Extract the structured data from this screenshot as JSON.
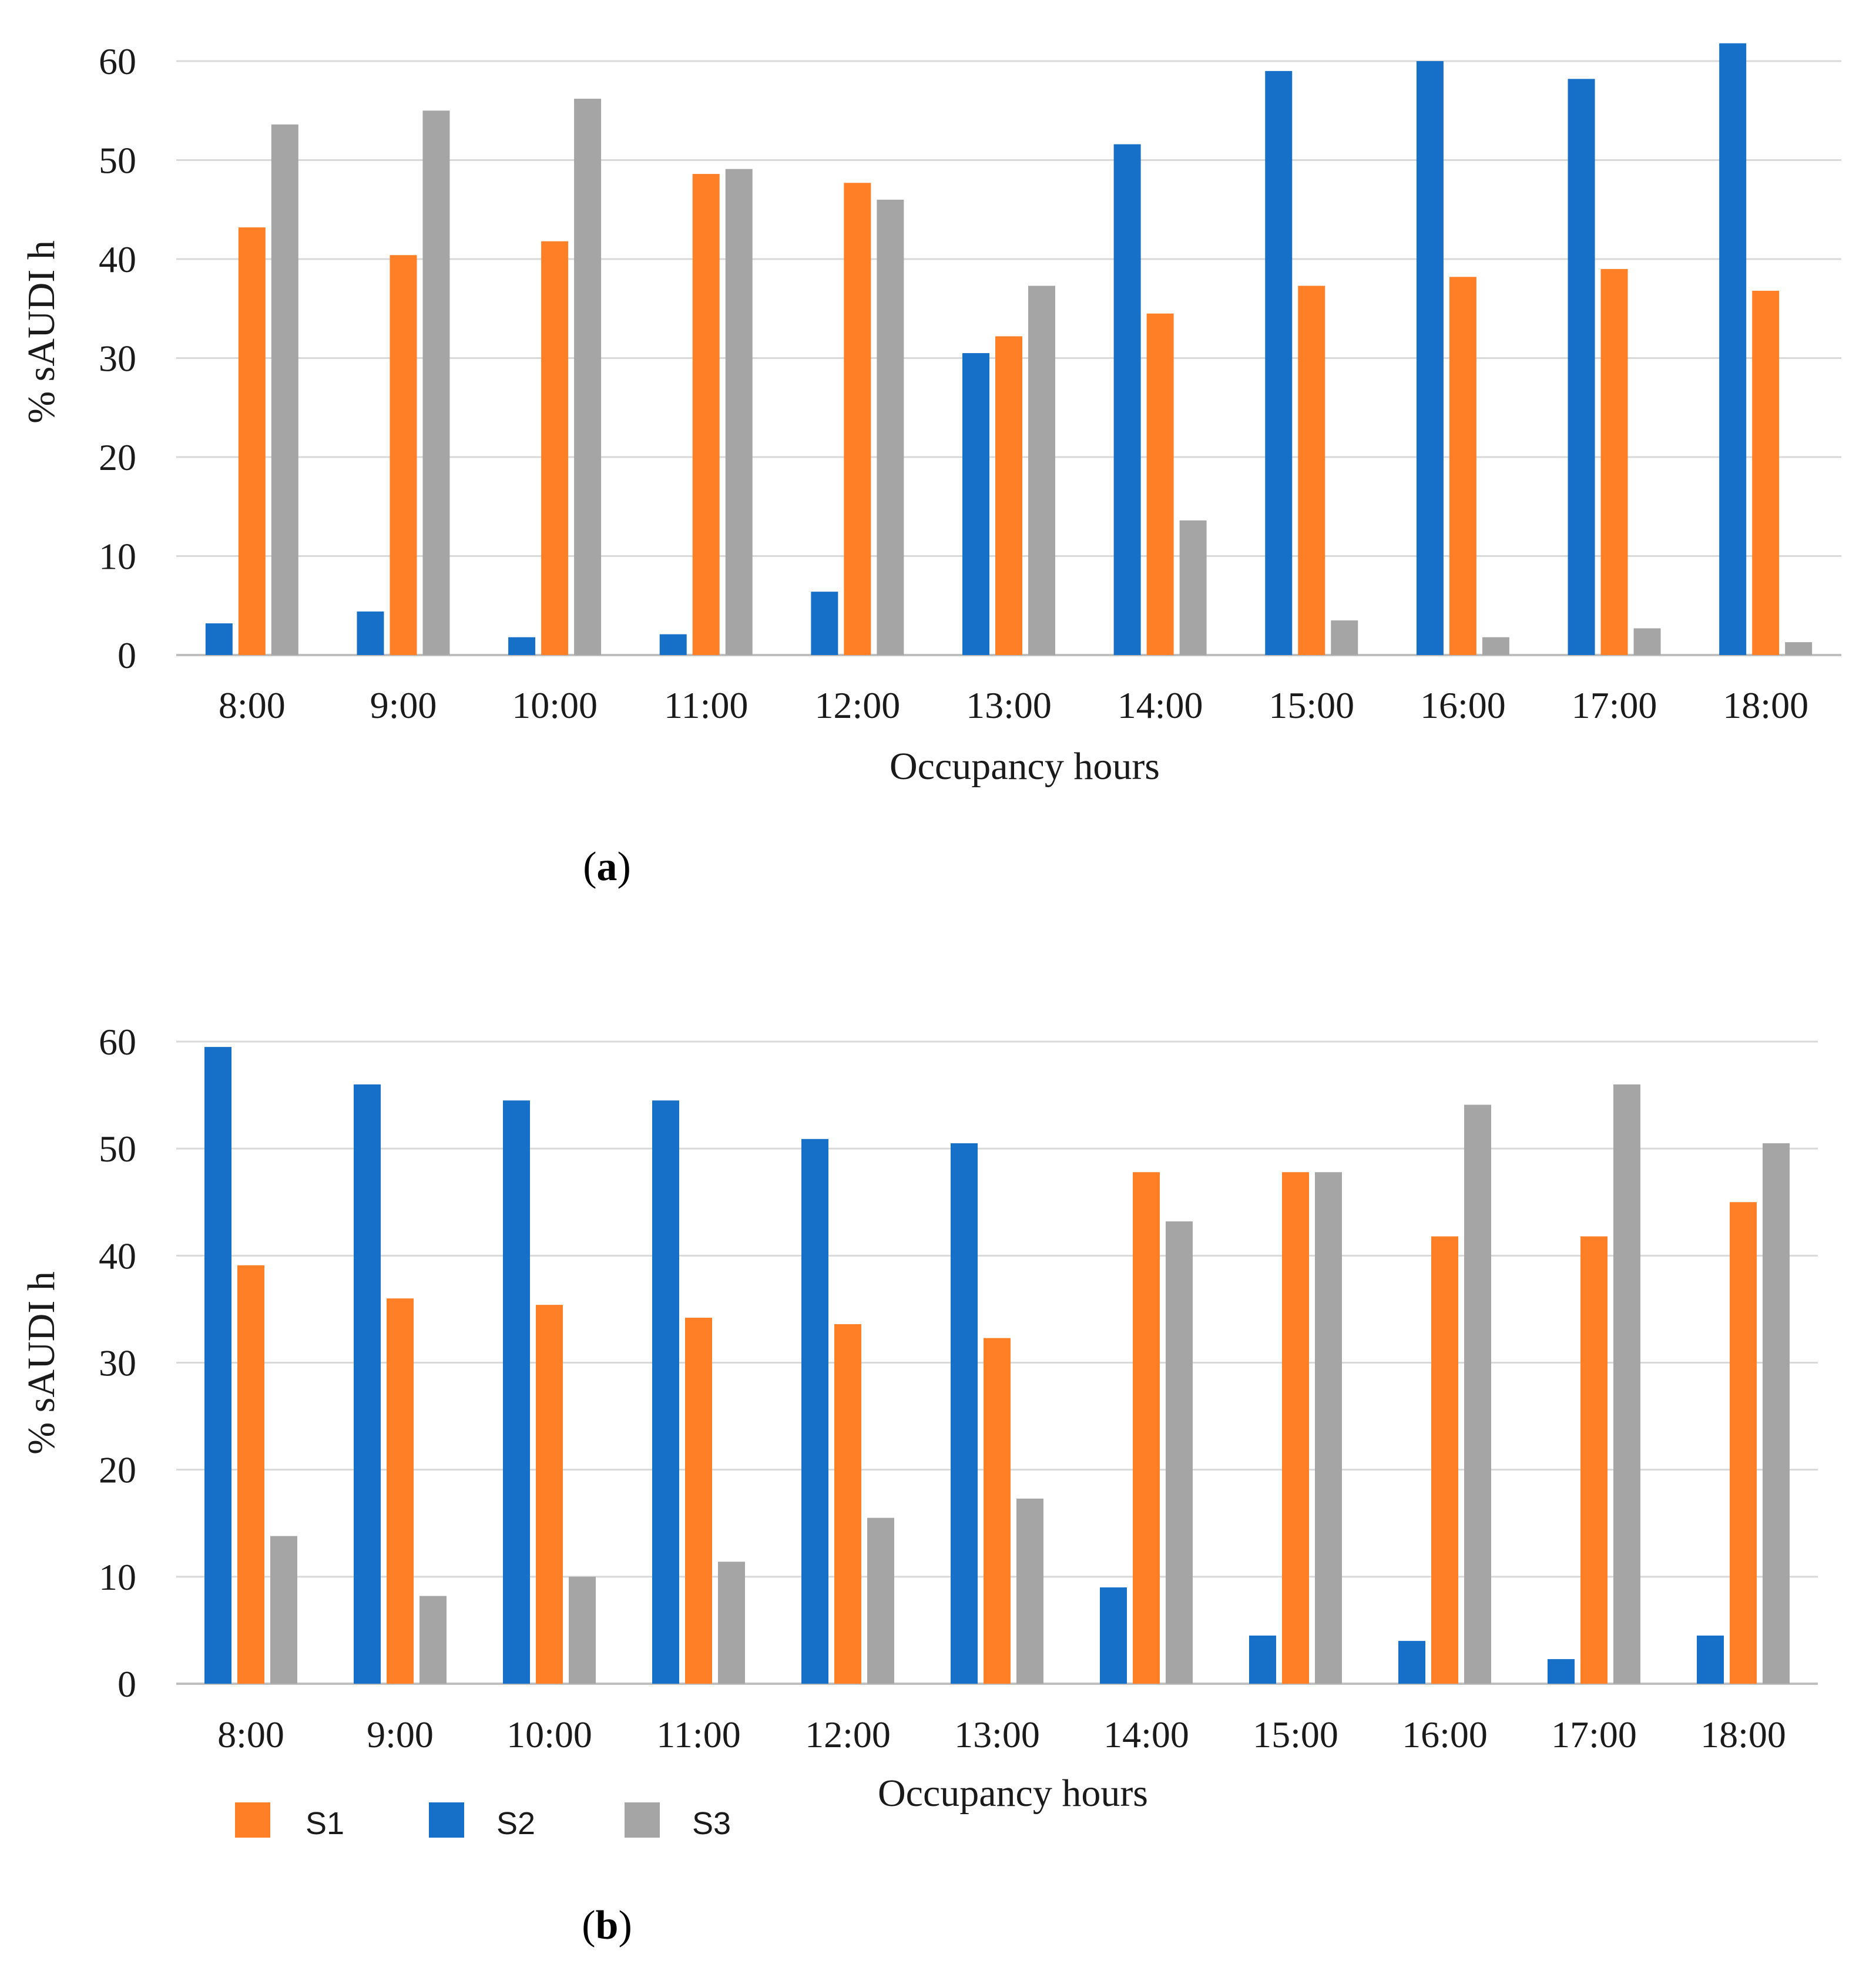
{
  "colors": {
    "S1": "#FF7F27",
    "S2": "#1670C8",
    "S3": "#A5A5A5",
    "grid": "#D9D9D9",
    "axis": "#BFBFBF"
  },
  "legend": {
    "items": [
      {
        "key": "S1",
        "label": "S1"
      },
      {
        "key": "S2",
        "label": "S2"
      },
      {
        "key": "S3",
        "label": "S3"
      }
    ]
  },
  "chart_data": [
    {
      "type": "bar",
      "panel_label": "a",
      "title": "",
      "xlabel": "Occupancy hours",
      "ylabel": "% sAUDI h",
      "ylim": [
        0,
        60
      ],
      "yticks": [
        0,
        10,
        20,
        30,
        40,
        50,
        60
      ],
      "grid": true,
      "categories": [
        "8:00",
        "9:00",
        "10:00",
        "11:00",
        "12:00",
        "13:00",
        "14:00",
        "15:00",
        "16:00",
        "17:00",
        "18:00"
      ],
      "series": [
        {
          "name": "S2",
          "values": [
            3.2,
            4.4,
            1.8,
            2.1,
            6.4,
            30.5,
            51.6,
            59.0,
            60.0,
            58.2,
            61.8
          ]
        },
        {
          "name": "S1",
          "values": [
            43.2,
            40.4,
            41.8,
            48.6,
            47.7,
            32.2,
            34.5,
            37.3,
            38.2,
            39.0,
            36.8
          ]
        },
        {
          "name": "S3",
          "values": [
            53.6,
            55.0,
            56.2,
            49.1,
            46.0,
            37.3,
            13.6,
            3.5,
            1.8,
            2.7,
            1.3
          ]
        }
      ]
    },
    {
      "type": "bar",
      "panel_label": "b",
      "title": "",
      "xlabel": "Occupancy hours",
      "ylabel": "% sAUDI h",
      "ylim": [
        0,
        60
      ],
      "yticks": [
        0,
        10,
        20,
        30,
        40,
        50,
        60
      ],
      "grid": true,
      "legend_position": "bottom-left",
      "categories": [
        "8:00",
        "9:00",
        "10:00",
        "11:00",
        "12:00",
        "13:00",
        "14:00",
        "15:00",
        "16:00",
        "17:00",
        "18:00"
      ],
      "series": [
        {
          "name": "S2",
          "values": [
            59.5,
            56.0,
            54.5,
            54.5,
            50.9,
            50.5,
            9.0,
            4.5,
            4.0,
            2.3,
            4.5
          ]
        },
        {
          "name": "S1",
          "values": [
            39.1,
            36.0,
            35.4,
            34.2,
            33.6,
            32.3,
            47.8,
            47.8,
            41.8,
            41.8,
            45.0
          ]
        },
        {
          "name": "S3",
          "values": [
            13.8,
            8.2,
            10.0,
            11.4,
            15.5,
            17.3,
            43.2,
            47.8,
            54.1,
            56.0,
            50.5
          ]
        }
      ]
    }
  ]
}
